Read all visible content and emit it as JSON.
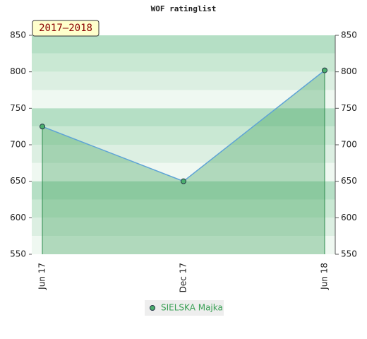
{
  "chart_data": {
    "type": "line",
    "title": "WOF ratinglist",
    "annotation": "2017–2018",
    "categories": [
      "Jun 17",
      "Dec 17",
      "Jun 18"
    ],
    "series": [
      {
        "name": "SIELSKA Majka",
        "color": "#5ea3d6",
        "values": [
          725,
          650,
          802
        ]
      }
    ],
    "ylim": [
      550,
      850
    ],
    "yticks": [
      550,
      600,
      650,
      700,
      750,
      800,
      850
    ],
    "grid": true,
    "legend": "bottom"
  }
}
